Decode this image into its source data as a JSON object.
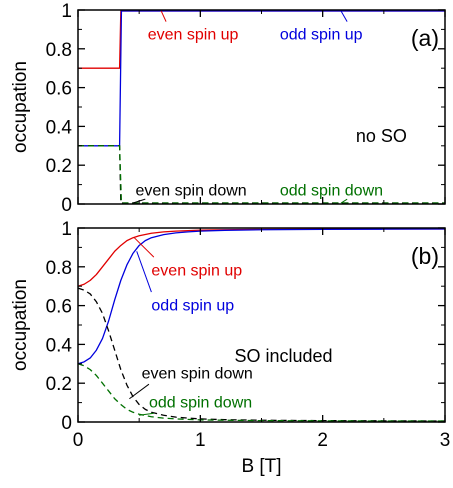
{
  "chart_data": [
    {
      "type": "line",
      "panel_label": "(a)",
      "ylabel": "occupation",
      "xlim": [
        0,
        3
      ],
      "ylim": [
        0,
        1
      ],
      "xticks": [
        "0",
        "1",
        "2",
        "3"
      ],
      "yticks": [
        "0",
        "0.2",
        "0.4",
        "0.6",
        "0.8",
        "1"
      ],
      "show_xtick_labels": false,
      "annotation": "no SO",
      "series": [
        {
          "name": "even spin up",
          "color": "#e00000",
          "dash": "solid",
          "x": [
            0,
            0.34,
            0.35,
            3
          ],
          "y": [
            0.7,
            0.7,
            0.995,
            0.995
          ]
        },
        {
          "name": "odd spin up",
          "color": "#0000dd",
          "dash": "solid",
          "x": [
            0,
            0.34,
            0.355,
            3
          ],
          "y": [
            0.3,
            0.3,
            0.995,
            0.995
          ]
        },
        {
          "name": "even spin down",
          "color": "#000000",
          "dash": "dashed",
          "x": [
            0,
            0.34,
            0.35,
            3
          ],
          "y": [
            0.3,
            0.3,
            0.005,
            0.005
          ]
        },
        {
          "name": "odd spin down",
          "color": "#007000",
          "dash": "dashed",
          "x": [
            0,
            0.34,
            0.355,
            3
          ],
          "y": [
            0.3,
            0.3,
            0.005,
            0.005
          ]
        }
      ]
    },
    {
      "type": "line",
      "panel_label": "(b)",
      "ylabel": "occupation",
      "xlabel": "B [T]",
      "xlim": [
        0,
        3
      ],
      "ylim": [
        0,
        1
      ],
      "xticks": [
        "0",
        "1",
        "2",
        "3"
      ],
      "yticks": [
        "0",
        "0.2",
        "0.4",
        "0.6",
        "0.8",
        "1"
      ],
      "show_xtick_labels": true,
      "annotation": "SO included",
      "series": [
        {
          "name": "even spin up",
          "color": "#e00000",
          "dash": "solid",
          "x": [
            0,
            0.05,
            0.1,
            0.15,
            0.2,
            0.25,
            0.3,
            0.35,
            0.4,
            0.45,
            0.5,
            0.6,
            0.7,
            0.8,
            1.0,
            1.2,
            1.5,
            2.0,
            2.5,
            3.0
          ],
          "y": [
            0.7,
            0.71,
            0.73,
            0.76,
            0.8,
            0.84,
            0.88,
            0.91,
            0.935,
            0.95,
            0.96,
            0.973,
            0.98,
            0.984,
            0.989,
            0.991,
            0.993,
            0.994,
            0.995,
            0.995
          ]
        },
        {
          "name": "odd spin up",
          "color": "#0000dd",
          "dash": "solid",
          "x": [
            0,
            0.05,
            0.1,
            0.15,
            0.2,
            0.25,
            0.3,
            0.35,
            0.4,
            0.45,
            0.5,
            0.55,
            0.6,
            0.7,
            0.8,
            0.9,
            1.0,
            1.2,
            1.5,
            2.0,
            2.5,
            3.0
          ],
          "y": [
            0.3,
            0.31,
            0.33,
            0.37,
            0.43,
            0.52,
            0.63,
            0.73,
            0.81,
            0.87,
            0.91,
            0.935,
            0.95,
            0.966,
            0.975,
            0.98,
            0.984,
            0.988,
            0.991,
            0.993,
            0.994,
            0.995
          ]
        },
        {
          "name": "even spin down",
          "color": "#000000",
          "dash": "dashed",
          "x": [
            0,
            0.05,
            0.1,
            0.15,
            0.2,
            0.25,
            0.3,
            0.35,
            0.4,
            0.45,
            0.5,
            0.55,
            0.6,
            0.7,
            0.8,
            0.9,
            1.0,
            1.2,
            1.5,
            2.0,
            2.5,
            3.0
          ],
          "y": [
            0.69,
            0.68,
            0.66,
            0.62,
            0.56,
            0.47,
            0.37,
            0.27,
            0.19,
            0.13,
            0.09,
            0.065,
            0.05,
            0.035,
            0.025,
            0.02,
            0.016,
            0.012,
            0.009,
            0.007,
            0.006,
            0.005
          ]
        },
        {
          "name": "odd spin down",
          "color": "#007000",
          "dash": "dashed",
          "x": [
            0,
            0.05,
            0.1,
            0.15,
            0.2,
            0.25,
            0.3,
            0.35,
            0.4,
            0.45,
            0.5,
            0.6,
            0.7,
            0.8,
            1.0,
            1.2,
            1.5,
            2.0,
            2.5,
            3.0
          ],
          "y": [
            0.3,
            0.29,
            0.27,
            0.24,
            0.2,
            0.16,
            0.12,
            0.09,
            0.065,
            0.05,
            0.04,
            0.027,
            0.02,
            0.016,
            0.011,
            0.009,
            0.007,
            0.006,
            0.005,
            0.005
          ]
        }
      ]
    }
  ]
}
